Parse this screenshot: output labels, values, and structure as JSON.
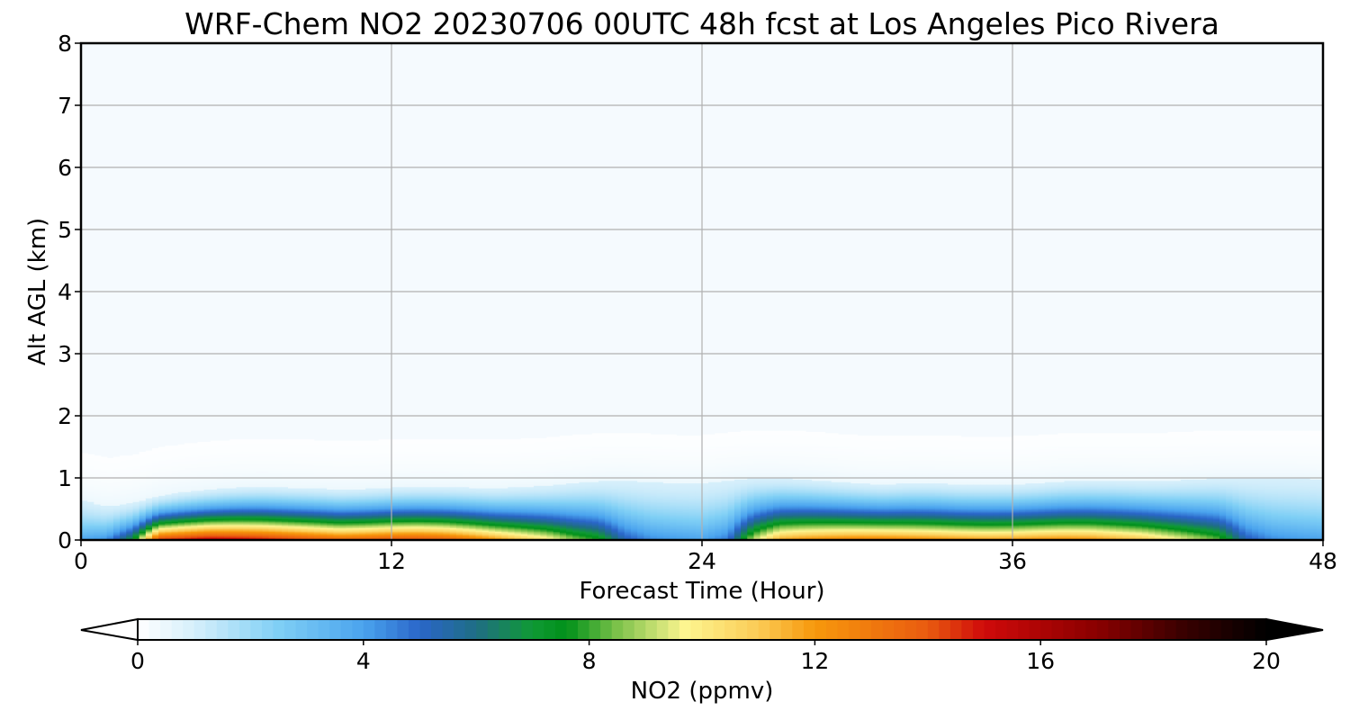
{
  "chart_data": {
    "type": "heatmap",
    "title": "WRF-Chem NO2  20230706 00UTC 48h fcst at Los Angeles Pico Rivera",
    "xlabel": "Forecast Time (Hour)",
    "ylabel": "Alt AGL (km)",
    "xlim": [
      0,
      48
    ],
    "ylim": [
      0,
      8
    ],
    "x_ticks": [
      0,
      12,
      24,
      36,
      48
    ],
    "y_ticks": [
      0,
      1,
      2,
      3,
      4,
      5,
      6,
      7,
      8
    ],
    "grid": true,
    "colorbar": {
      "label": "NO2  (ppmv)",
      "range": [
        0,
        20
      ],
      "ticks": [
        0,
        4,
        8,
        12,
        16,
        20
      ],
      "extend": "both",
      "orientation": "horizontal",
      "colors": [
        {
          "v": 0,
          "c": "#ffffff"
        },
        {
          "v": 1,
          "c": "#d6effb"
        },
        {
          "v": 2.5,
          "c": "#7fcff5"
        },
        {
          "v": 4,
          "c": "#4aa3ee"
        },
        {
          "v": 5,
          "c": "#2a66c9"
        },
        {
          "v": 6,
          "c": "#1f6e84"
        },
        {
          "v": 7,
          "c": "#109a34"
        },
        {
          "v": 7.6,
          "c": "#00901a"
        },
        {
          "v": 8.5,
          "c": "#7cc24a"
        },
        {
          "v": 9.7,
          "c": "#fdf590"
        },
        {
          "v": 11,
          "c": "#fbcb55"
        },
        {
          "v": 12,
          "c": "#f7980c"
        },
        {
          "v": 14,
          "c": "#e95b10"
        },
        {
          "v": 15,
          "c": "#cf0a0a"
        },
        {
          "v": 17,
          "c": "#8a0000"
        },
        {
          "v": 18.5,
          "c": "#3a0000"
        },
        {
          "v": 20,
          "c": "#000000"
        }
      ]
    },
    "x": [
      0,
      1,
      2,
      3,
      4,
      5,
      6,
      7,
      8,
      9,
      10,
      11,
      12,
      13,
      14,
      15,
      16,
      17,
      18,
      19,
      20,
      21,
      22,
      23,
      24,
      25,
      26,
      27,
      28,
      29,
      30,
      31,
      32,
      33,
      34,
      35,
      36,
      37,
      38,
      39,
      40,
      41,
      42,
      43,
      44,
      45,
      46,
      47,
      48
    ],
    "profiles": {
      "surface_value": [
        4.0,
        4.5,
        7.5,
        15.0,
        15.5,
        16.0,
        15.8,
        15.5,
        15.0,
        14.5,
        14.0,
        14.2,
        14.5,
        14.6,
        14.3,
        13.5,
        12.5,
        11.5,
        10.5,
        9.0,
        8.0,
        5.5,
        4.5,
        4.2,
        4.0,
        4.8,
        9.5,
        12.0,
        12.5,
        12.8,
        13.0,
        13.0,
        12.8,
        12.6,
        12.4,
        12.2,
        12.3,
        12.5,
        12.6,
        12.5,
        12.0,
        11.5,
        10.5,
        9.5,
        8.5,
        5.5,
        4.5,
        4.2,
        4.0
      ],
      "blue_layer_top_km": [
        0.65,
        0.55,
        0.6,
        0.72,
        0.78,
        0.82,
        0.85,
        0.86,
        0.85,
        0.84,
        0.82,
        0.83,
        0.85,
        0.86,
        0.86,
        0.85,
        0.84,
        0.86,
        0.88,
        0.92,
        0.95,
        0.96,
        0.94,
        0.92,
        0.92,
        0.96,
        1.0,
        1.0,
        0.98,
        0.95,
        0.92,
        0.9,
        0.92,
        0.92,
        0.9,
        0.9,
        0.9,
        0.92,
        0.95,
        0.96,
        0.96,
        0.95,
        0.96,
        0.98,
        1.0,
        1.0,
        1.0,
        1.0,
        0.98
      ]
    }
  }
}
